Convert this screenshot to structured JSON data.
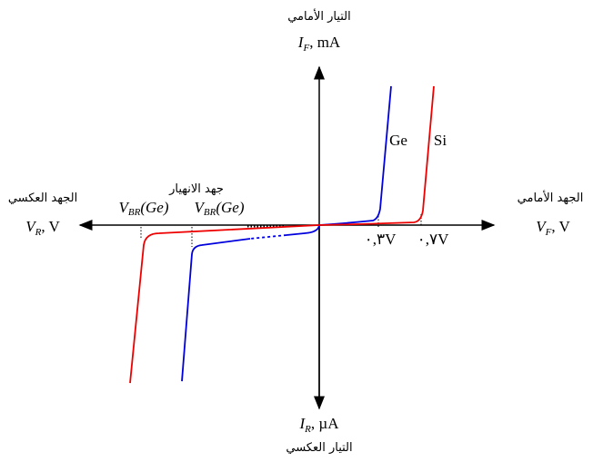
{
  "labels": {
    "forward_current_ar": "التيار الأمامي",
    "forward_current": {
      "symbol": "I",
      "subscript": "F",
      "unit": ", mA"
    },
    "reverse_voltage_ar": "الجهد العكسي",
    "reverse_voltage": {
      "symbol": "V",
      "subscript": "R",
      "unit": ", V"
    },
    "forward_voltage_ar": "الجهد الأمامي",
    "forward_voltage": {
      "symbol": "V",
      "subscript": "F",
      "unit": ", V"
    },
    "reverse_current_ar": "التيار العكسي",
    "reverse_current": {
      "symbol": "I",
      "subscript": "R",
      "unit": ", µA"
    },
    "breakdown_ar": "جهد الانهيار",
    "breakdown_1": {
      "symbol": "V",
      "subscript": "BR",
      "rest": "(Ge)"
    },
    "breakdown_2": {
      "symbol": "V",
      "subscript": "BR",
      "rest": "(Ge)"
    },
    "ge": "Ge",
    "si": "Si",
    "knee_ge": "٠,٣V",
    "knee_si": "٠,٧V"
  }
}
